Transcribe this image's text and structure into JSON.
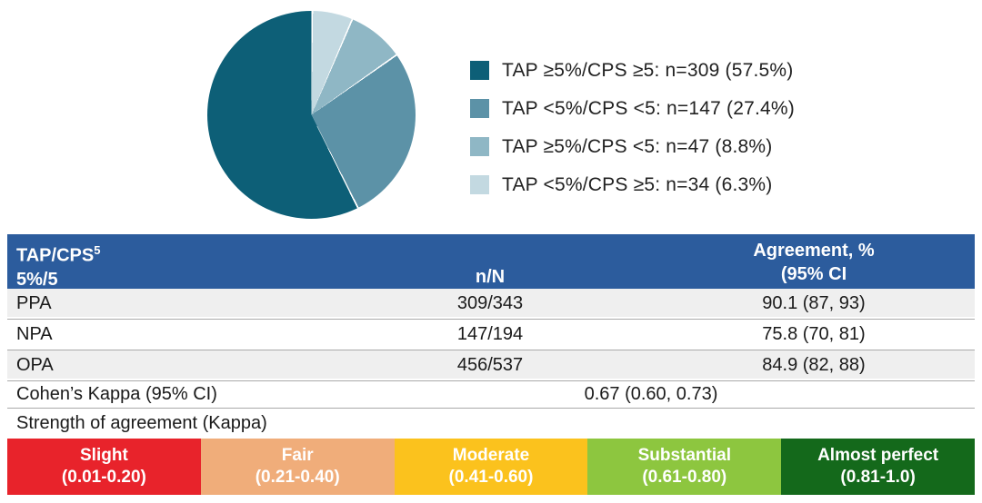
{
  "chart_data": [
    {
      "type": "pie",
      "title": "",
      "legend_position": "right",
      "draw_order": "reverse legend order, clockwise from 12 o'clock",
      "slices": [
        {
          "label": "TAP ≥5%/CPS ≥5: n=309 (57.5%)",
          "n": 309,
          "pct": 57.5,
          "color": "#0D5F77"
        },
        {
          "label": "TAP <5%/CPS <5: n=147 (27.4%)",
          "n": 147,
          "pct": 27.4,
          "color": "#5C92A7"
        },
        {
          "label": "TAP ≥5%/CPS <5: n=47 (8.8%)",
          "n": 47,
          "pct": 8.8,
          "color": "#8FB7C5"
        },
        {
          "label": "TAP <5%/CPS ≥5: n=34 (6.3%)",
          "n": 34,
          "pct": 6.3,
          "color": "#C3D9E1"
        }
      ]
    },
    {
      "type": "table",
      "header": {
        "col1_main": "TAP/CPS",
        "col1_sup": "5",
        "col1_sub": "5%/5",
        "col2": "n/N",
        "col3_line1": "Agreement, %",
        "col3_line2": "(95% CI",
        "bg_color": "#2C5C9D"
      },
      "rows": [
        {
          "label": "PPA",
          "n_N": "309/343",
          "agreement": "90.1 (87, 93)"
        },
        {
          "label": "NPA",
          "n_N": "147/194",
          "agreement": "75.8 (70, 81)"
        },
        {
          "label": "OPA",
          "n_N": "456/537",
          "agreement": "84.9 (82, 88)"
        }
      ],
      "row_alt_bg": "#EFEFEF",
      "kappa": {
        "label": "Cohen’s Kappa (95% CI)",
        "value": "0.67 (0.60, 0.73)"
      },
      "strength_label": "Strength of agreement (Kappa)",
      "strength_scale": [
        {
          "label": "Slight",
          "range": "(0.01-0.20)",
          "color": "#E8232B"
        },
        {
          "label": "Fair",
          "range": "(0.21-0.40)",
          "color": "#F0AD7A"
        },
        {
          "label": "Moderate",
          "range": "(0.41-0.60)",
          "color": "#FBC21D"
        },
        {
          "label": "Substantial",
          "range": "(0.61-0.80)",
          "color": "#8DC63F"
        },
        {
          "label": "Almost perfect",
          "range": "(0.81-1.0)",
          "color": "#14691B"
        }
      ]
    }
  ]
}
